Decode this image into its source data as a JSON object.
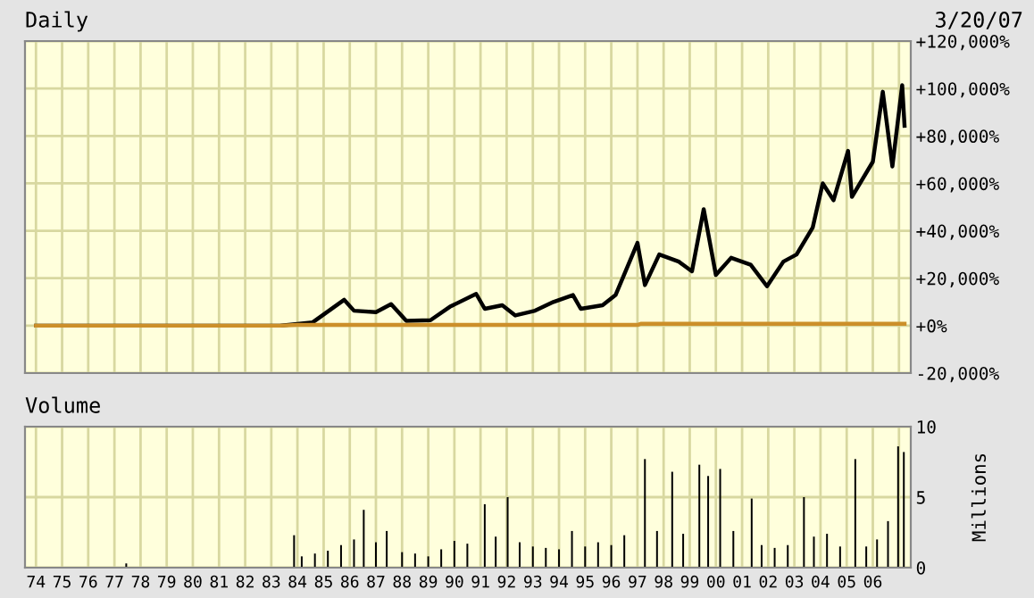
{
  "chart_data": [
    {
      "type": "line",
      "title": "Daily",
      "subtitle": "3/20/07",
      "grid": true,
      "tick_labels": "y",
      "xlim": [
        "1973-08-01",
        "2007-06-15"
      ],
      "xticks": [
        {
          "value": "1974-01-01",
          "label": null
        },
        {
          "value": "1975-01-01",
          "label": null
        },
        {
          "value": "1976-01-01",
          "label": null
        },
        {
          "value": "1977-01-01",
          "label": null
        },
        {
          "value": "1978-01-01",
          "label": null
        },
        {
          "value": "1979-01-01",
          "label": null
        },
        {
          "value": "1980-01-01",
          "label": null
        },
        {
          "value": "1981-01-01",
          "label": null
        },
        {
          "value": "1982-01-01",
          "label": null
        },
        {
          "value": "1983-01-01",
          "label": null
        },
        {
          "value": "1984-01-01",
          "label": null
        },
        {
          "value": "1985-01-01",
          "label": null
        },
        {
          "value": "1986-01-01",
          "label": null
        },
        {
          "value": "1987-01-01",
          "label": null
        },
        {
          "value": "1988-01-01",
          "label": null
        },
        {
          "value": "1989-01-01",
          "label": null
        },
        {
          "value": "1990-01-01",
          "label": null
        },
        {
          "value": "1991-01-01",
          "label": null
        },
        {
          "value": "1992-01-01",
          "label": null
        },
        {
          "value": "1993-01-01",
          "label": null
        },
        {
          "value": "1994-01-01",
          "label": null
        },
        {
          "value": "1995-01-01",
          "label": null
        },
        {
          "value": "1996-01-01",
          "label": null
        },
        {
          "value": "1997-01-01",
          "label": null
        },
        {
          "value": "1998-01-01",
          "label": null
        },
        {
          "value": "1999-01-01",
          "label": null
        },
        {
          "value": "2000-01-01",
          "label": null
        },
        {
          "value": "2001-01-01",
          "label": null
        },
        {
          "value": "2002-01-01",
          "label": null
        },
        {
          "value": "2003-01-01",
          "label": null
        },
        {
          "value": "2004-01-01",
          "label": null
        },
        {
          "value": "2005-01-01",
          "label": null
        },
        {
          "value": "2006-01-01",
          "label": null
        },
        {
          "value": "2007-01-01",
          "label": null
        }
      ],
      "ylim": [
        -20000,
        120000
      ],
      "yticks": [
        {
          "value": -20000,
          "label": "-20,000%"
        },
        {
          "value": 0,
          "label": "+0%"
        },
        {
          "value": 20000,
          "label": "+20,000%"
        },
        {
          "value": 40000,
          "label": "+40,000%"
        },
        {
          "value": 60000,
          "label": "+60,000%"
        },
        {
          "value": 80000,
          "label": "+80,000%"
        },
        {
          "value": 100000,
          "label": "+100,000%"
        },
        {
          "value": 120000,
          "label": "+120,000%"
        }
      ],
      "series": [
        {
          "color": "#000000",
          "x": [
            "1974-01-02",
            "1983-05-01",
            "1984-08-01",
            "1985-10-15",
            "1986-03-01",
            "1987-01-01",
            "1987-08-01",
            "1988-03-01",
            "1989-02-01",
            "1989-11-01",
            "1990-11-01",
            "1991-03-01",
            "1991-11-01",
            "1992-05-01",
            "1993-02-01",
            "1993-10-15",
            "1994-07-15",
            "1994-11-01",
            "1995-09-01",
            "1996-03-01",
            "1997-01-01",
            "1997-04-15",
            "1997-11-01",
            "1998-08-01",
            "1999-02-01",
            "1999-07-15",
            "2000-01-01",
            "2000-08-01",
            "2001-05-01",
            "2001-12-15",
            "2002-08-01",
            "2003-02-01",
            "2003-09-15",
            "2004-02-01",
            "2004-07-01",
            "2005-01-20",
            "2005-03-15",
            "2006-01-01",
            "2006-05-20",
            "2006-10-01",
            "2007-02-15",
            "2007-03-20"
          ],
          "values": [
            0,
            0,
            1400,
            10900,
            6300,
            5700,
            9100,
            2000,
            2300,
            8000,
            13400,
            7100,
            8600,
            4300,
            6300,
            10000,
            12900,
            7100,
            8600,
            12900,
            34900,
            17100,
            30000,
            27000,
            22900,
            49100,
            21400,
            28600,
            25700,
            16600,
            27000,
            30000,
            41400,
            60000,
            52900,
            73700,
            54300,
            69100,
            98600,
            67100,
            101400,
            84300
          ]
        },
        {
          "color": "#cc8f2a",
          "x": [
            "1974-01-02",
            "1983-05-01",
            "1984-01-01",
            "1997-01-01",
            "1997-02-15",
            "2007-03-20"
          ],
          "values": [
            0,
            0,
            300,
            300,
            800,
            800
          ]
        }
      ]
    },
    {
      "type": "bar",
      "title": "Volume",
      "ylabel": "Millions",
      "grid": true,
      "color": "#000000",
      "xlim": [
        "1973-08-01",
        "2007-06-15"
      ],
      "xticks": [
        {
          "value": "1974-01-01",
          "label": "74"
        },
        {
          "value": "1975-01-01",
          "label": "75"
        },
        {
          "value": "1976-01-01",
          "label": "76"
        },
        {
          "value": "1977-01-01",
          "label": "77"
        },
        {
          "value": "1978-01-01",
          "label": "78"
        },
        {
          "value": "1979-01-01",
          "label": "79"
        },
        {
          "value": "1980-01-01",
          "label": "80"
        },
        {
          "value": "1981-01-01",
          "label": "81"
        },
        {
          "value": "1982-01-01",
          "label": "82"
        },
        {
          "value": "1983-01-01",
          "label": "83"
        },
        {
          "value": "1984-01-01",
          "label": "84"
        },
        {
          "value": "1985-01-01",
          "label": "85"
        },
        {
          "value": "1986-01-01",
          "label": "86"
        },
        {
          "value": "1987-01-01",
          "label": "87"
        },
        {
          "value": "1988-01-01",
          "label": "88"
        },
        {
          "value": "1989-01-01",
          "label": "89"
        },
        {
          "value": "1990-01-01",
          "label": "90"
        },
        {
          "value": "1991-01-01",
          "label": "91"
        },
        {
          "value": "1992-01-01",
          "label": "92"
        },
        {
          "value": "1993-01-01",
          "label": "93"
        },
        {
          "value": "1994-01-01",
          "label": "94"
        },
        {
          "value": "1995-01-01",
          "label": "95"
        },
        {
          "value": "1996-01-01",
          "label": "96"
        },
        {
          "value": "1997-01-01",
          "label": "97"
        },
        {
          "value": "1998-01-01",
          "label": "98"
        },
        {
          "value": "1999-01-01",
          "label": "99"
        },
        {
          "value": "2000-01-01",
          "label": "00"
        },
        {
          "value": "2001-01-01",
          "label": "01"
        },
        {
          "value": "2002-01-01",
          "label": "02"
        },
        {
          "value": "2003-01-01",
          "label": "03"
        },
        {
          "value": "2004-01-01",
          "label": "04"
        },
        {
          "value": "2005-01-01",
          "label": "05"
        },
        {
          "value": "2006-01-01",
          "label": "06"
        },
        {
          "value": "2007-01-01",
          "label": null
        }
      ],
      "ylim": [
        0,
        10
      ],
      "yticks": [
        0,
        5,
        10
      ],
      "x": [
        "1977-06-15",
        "1983-11-15",
        "1984-03-01",
        "1984-09-01",
        "1985-03-01",
        "1985-09-01",
        "1986-03-01",
        "1986-07-15",
        "1987-01-01",
        "1987-06-01",
        "1988-01-01",
        "1988-07-01",
        "1989-01-01",
        "1989-07-01",
        "1990-01-01",
        "1990-07-01",
        "1991-03-01",
        "1991-08-01",
        "1992-01-15",
        "1992-07-01",
        "1993-01-01",
        "1993-07-01",
        "1994-01-01",
        "1994-07-01",
        "1995-01-01",
        "1995-07-01",
        "1996-01-01",
        "1996-07-01",
        "1997-04-15",
        "1997-10-01",
        "1998-05-01",
        "1998-10-01",
        "1999-05-15",
        "1999-09-15",
        "2000-03-01",
        "2000-09-01",
        "2001-05-15",
        "2001-10-01",
        "2002-04-01",
        "2002-10-01",
        "2003-05-15",
        "2003-10-01",
        "2004-04-01",
        "2004-10-01",
        "2005-05-01",
        "2005-10-01",
        "2006-03-01",
        "2006-08-01",
        "2006-12-20",
        "2007-03-10"
      ],
      "values": [
        0.3,
        2.3,
        0.8,
        1.0,
        1.2,
        1.6,
        2.0,
        4.1,
        1.8,
        2.6,
        1.1,
        1.0,
        0.8,
        1.3,
        1.9,
        1.7,
        4.5,
        2.2,
        5.0,
        1.8,
        1.5,
        1.4,
        1.3,
        2.6,
        1.5,
        1.8,
        1.6,
        2.3,
        7.7,
        2.6,
        6.8,
        2.4,
        7.3,
        6.5,
        7.0,
        2.6,
        4.9,
        1.6,
        1.4,
        1.6,
        5.0,
        2.2,
        2.4,
        1.5,
        7.7,
        1.5,
        2.0,
        3.3,
        8.6,
        8.2
      ]
    }
  ]
}
